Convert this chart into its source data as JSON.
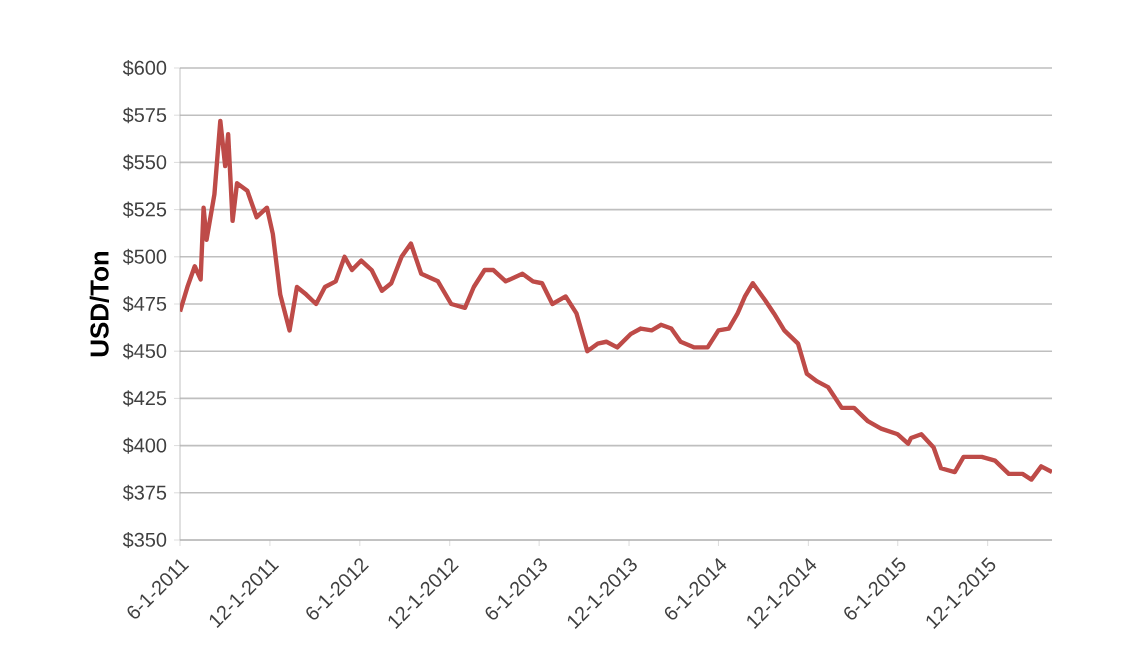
{
  "chart_data": {
    "type": "line",
    "ylabel": "USD/Ton",
    "grid": "y",
    "marker": "none",
    "line_style": "solid",
    "x": [
      "2011-06-01",
      "2011-06-16",
      "2011-07-01",
      "2011-07-13",
      "2011-07-19",
      "2011-07-25",
      "2011-08-10",
      "2011-08-22",
      "2011-09-01",
      "2011-09-07",
      "2011-09-16",
      "2011-09-25",
      "2011-10-16",
      "2011-11-04",
      "2011-11-25",
      "2011-12-07",
      "2011-12-22",
      "2012-01-10",
      "2012-01-25",
      "2012-02-13",
      "2012-03-04",
      "2012-03-22",
      "2012-04-13",
      "2012-05-01",
      "2012-05-16",
      "2012-06-04",
      "2012-06-25",
      "2012-07-16",
      "2012-08-04",
      "2012-08-25",
      "2012-09-13",
      "2012-10-04",
      "2012-11-07",
      "2012-12-04",
      "2013-01-01",
      "2013-01-19",
      "2013-02-10",
      "2013-02-28",
      "2013-03-25",
      "2013-04-28",
      "2013-05-19",
      "2013-06-07",
      "2013-06-28",
      "2013-07-25",
      "2013-08-16",
      "2013-09-07",
      "2013-09-28",
      "2013-10-16",
      "2013-11-07",
      "2013-12-04",
      "2013-12-25",
      "2014-01-16",
      "2014-02-04",
      "2014-02-25",
      "2014-03-16",
      "2014-04-13",
      "2014-05-10",
      "2014-06-01",
      "2014-06-22",
      "2014-07-10",
      "2014-07-25",
      "2014-08-10",
      "2014-09-04",
      "2014-09-22",
      "2014-10-13",
      "2014-11-10",
      "2014-11-28",
      "2014-12-19",
      "2015-01-10",
      "2015-02-07",
      "2015-03-04",
      "2015-04-01",
      "2015-04-28",
      "2015-06-01",
      "2015-06-22",
      "2015-06-28",
      "2015-07-19",
      "2015-08-13",
      "2015-08-28",
      "2015-09-25",
      "2015-10-13",
      "2015-11-19",
      "2015-12-16",
      "2016-01-13",
      "2016-02-10",
      "2016-02-28",
      "2016-03-19",
      "2016-04-10"
    ],
    "series": [
      {
        "color": "#be4b48",
        "values": [
          471,
          484,
          495,
          488,
          526,
          509,
          533,
          572,
          548,
          565,
          519,
          539,
          535,
          521,
          526,
          512,
          480,
          461,
          484,
          480,
          475,
          484,
          487,
          500,
          493,
          498,
          493,
          482,
          486,
          500,
          507,
          491,
          487,
          475,
          473,
          484,
          493,
          493,
          487,
          491,
          487,
          486,
          475,
          479,
          470,
          450,
          454,
          455,
          452,
          459,
          462,
          461,
          464,
          462,
          455,
          452,
          452,
          461,
          462,
          470,
          479,
          486,
          477,
          470,
          461,
          454,
          438,
          434,
          431,
          420,
          420,
          413,
          409,
          406,
          401,
          404,
          406,
          399,
          388,
          386,
          394,
          394,
          392,
          385,
          385,
          382,
          389,
          386
        ]
      }
    ],
    "xlim": [
      "2011-06-01",
      "2016-04-10"
    ],
    "xticks": [
      {
        "value": "2011-06-01",
        "label": "6-1-2011"
      },
      {
        "value": "2011-12-01",
        "label": "12-1-2011"
      },
      {
        "value": "2012-06-01",
        "label": "6-1-2012"
      },
      {
        "value": "2012-12-01",
        "label": "12-1-2012"
      },
      {
        "value": "2013-06-01",
        "label": "6-1-2013"
      },
      {
        "value": "2013-12-01",
        "label": "12-1-2013"
      },
      {
        "value": "2014-06-01",
        "label": "6-1-2014"
      },
      {
        "value": "2014-12-01",
        "label": "12-1-2014"
      },
      {
        "value": "2015-06-01",
        "label": "6-1-2015"
      },
      {
        "value": "2015-12-01",
        "label": "12-1-2015"
      }
    ],
    "ylim": [
      350,
      600
    ],
    "yticks": [
      {
        "value": 350,
        "label": "$350"
      },
      {
        "value": 375,
        "label": "$375"
      },
      {
        "value": 400,
        "label": "$400"
      },
      {
        "value": 425,
        "label": "$425"
      },
      {
        "value": 450,
        "label": "$450"
      },
      {
        "value": 475,
        "label": "$475"
      },
      {
        "value": 500,
        "label": "$500"
      },
      {
        "value": 525,
        "label": "$525"
      },
      {
        "value": 550,
        "label": "$550"
      },
      {
        "value": 575,
        "label": "$575"
      },
      {
        "value": 600,
        "label": "$600"
      }
    ]
  }
}
